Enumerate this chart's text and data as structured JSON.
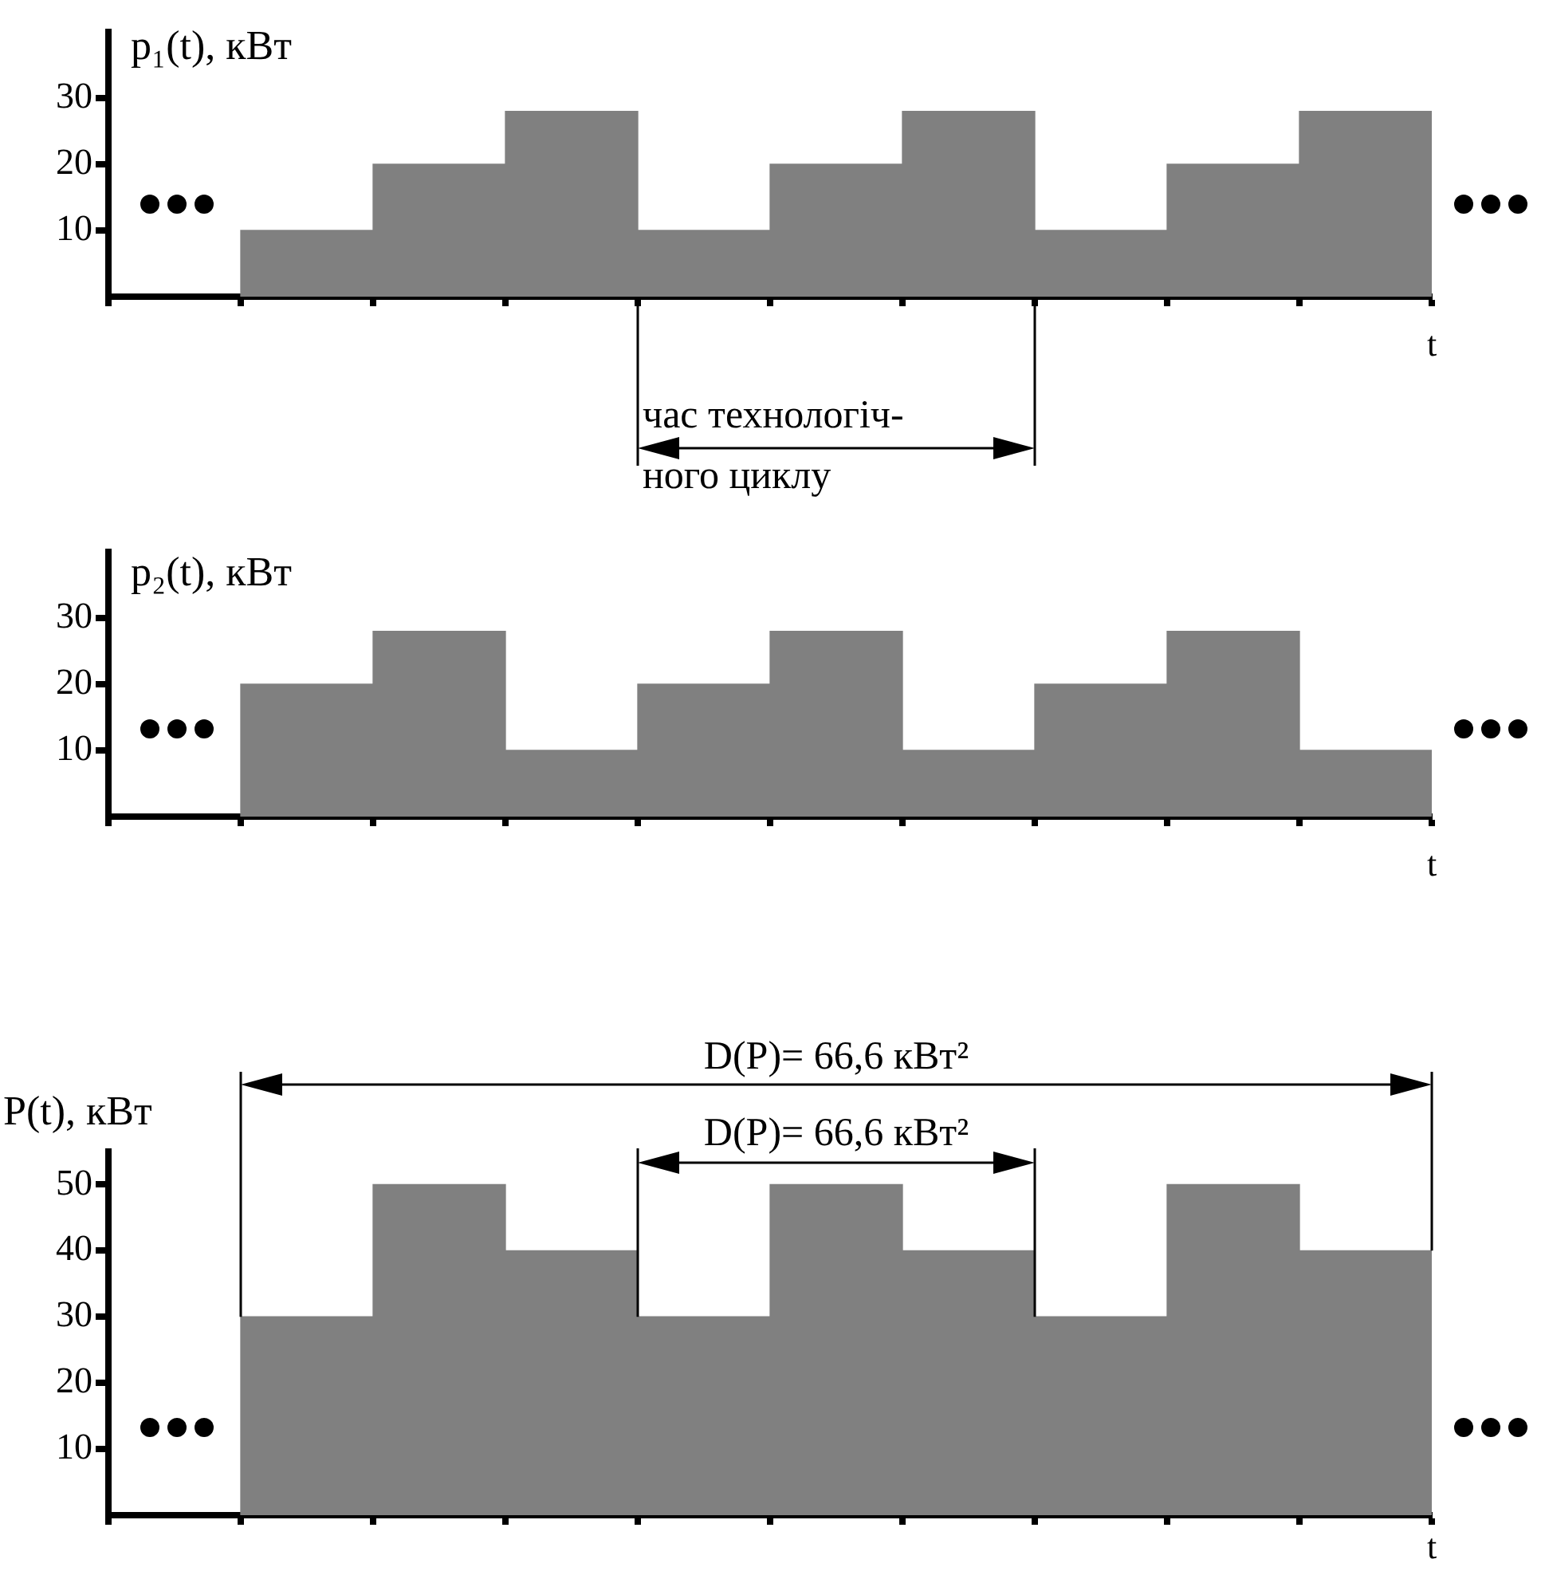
{
  "chart_data": [
    {
      "type": "bar",
      "ylabel": "p₁(t), кВт",
      "xlabel": "t",
      "categories": [
        null,
        null,
        null,
        null,
        null,
        null,
        null,
        null,
        null,
        null
      ],
      "values": [
        null,
        10,
        20,
        28,
        10,
        20,
        28,
        10,
        20,
        28
      ],
      "color": "#808080",
      "ylim": [
        0,
        40
      ],
      "yticks": [
        10,
        20,
        30
      ],
      "grid": false,
      "legend": false,
      "annotations": [
        "час технологіч-\nного циклу"
      ]
    },
    {
      "type": "bar",
      "ylabel": "p₂(t), кВт",
      "xlabel": "t",
      "categories": [
        null,
        null,
        null,
        null,
        null,
        null,
        null,
        null,
        null,
        null
      ],
      "values": [
        null,
        20,
        28,
        10,
        20,
        28,
        10,
        20,
        28,
        10
      ],
      "color": "#808080",
      "ylim": [
        0,
        40
      ],
      "yticks": [
        10,
        20,
        30
      ],
      "grid": false,
      "legend": false
    },
    {
      "type": "bar",
      "ylabel": "P(t), кВт",
      "xlabel": "t",
      "categories": [
        null,
        null,
        null,
        null,
        null,
        null,
        null,
        null,
        null,
        null
      ],
      "values": [
        null,
        30,
        50,
        40,
        30,
        50,
        40,
        30,
        50,
        40
      ],
      "color": "#808080",
      "ylim": [
        0,
        55
      ],
      "yticks": [
        10,
        20,
        30,
        40,
        50
      ],
      "grid": false,
      "legend": false,
      "annotations": [
        "D(P)= 66,6 кВт²",
        "D(P)= 66,6 кВт²"
      ]
    }
  ]
}
